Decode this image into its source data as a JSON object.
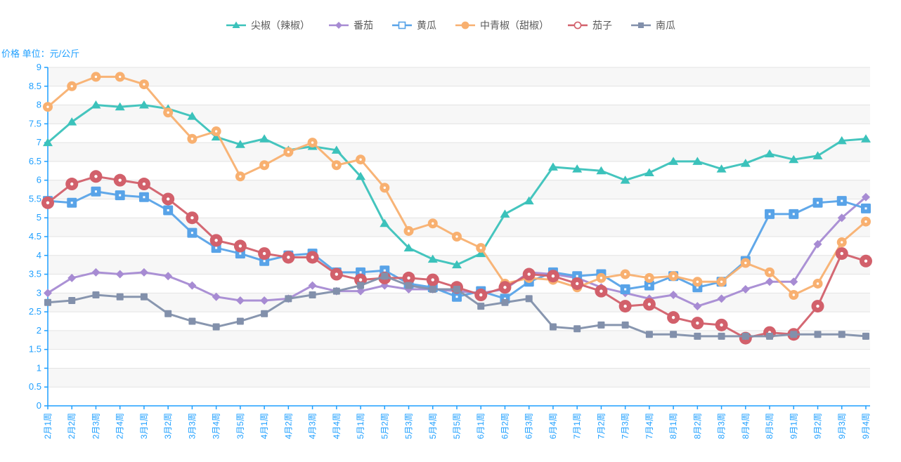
{
  "y_axis_title": "价格 单位：元/公斤",
  "chart_data": {
    "type": "line",
    "title": "",
    "ylabel": "价格 单位：元/公斤",
    "xlabel": "",
    "ylim": [
      0,
      9
    ],
    "y_interval": 0.5,
    "grid": true,
    "legend_position": "top",
    "axis_color": "#1e9fff",
    "gridline_color": "#e3e3e3",
    "band_color": "#f7f7f7",
    "x_labels": [
      "2月1周",
      "2月2周",
      "2月3周",
      "2月4周",
      "3月1周",
      "3月2周",
      "3月3周",
      "3月4周",
      "3月5周",
      "4月1周",
      "4月2周",
      "4月3周",
      "4月4周",
      "5月1周",
      "5月2周",
      "5月3周",
      "5月4周",
      "5月5周",
      "6月1周",
      "6月2周",
      "6月3周",
      "6月4周",
      "7月1周",
      "7月2周",
      "7月3周",
      "7月4周",
      "8月1周",
      "8月2周",
      "8月3周",
      "8月4周",
      "8月5周",
      "9月1周",
      "9月2周",
      "9月3周",
      "9月4周"
    ],
    "series": [
      {
        "name": "尖椒（辣椒）",
        "color": "#3bc2bb",
        "marker": "triangle",
        "hollow_in_legend": false,
        "values": [
          7.0,
          7.55,
          8.0,
          7.95,
          8.0,
          7.9,
          7.7,
          7.15,
          6.95,
          7.1,
          6.8,
          6.9,
          6.8,
          6.1,
          4.85,
          4.2,
          3.9,
          3.75,
          4.05,
          5.1,
          5.45,
          6.35,
          6.3,
          6.25,
          6.0,
          6.2,
          6.5,
          6.5,
          6.3,
          6.45,
          6.7,
          6.55,
          6.65,
          7.05,
          7.1
        ]
      },
      {
        "name": "番茄",
        "color": "#a78bd3",
        "marker": "diamond",
        "hollow_in_legend": false,
        "values": [
          3.0,
          3.4,
          3.55,
          3.5,
          3.55,
          3.45,
          3.2,
          2.9,
          2.8,
          2.8,
          2.85,
          3.2,
          3.05,
          3.05,
          3.2,
          3.1,
          3.1,
          3.05,
          3.0,
          3.1,
          3.55,
          3.5,
          3.4,
          3.15,
          3.0,
          2.85,
          2.95,
          2.65,
          2.85,
          3.1,
          3.3,
          3.3,
          4.3,
          5.0,
          5.55
        ]
      },
      {
        "name": "黄瓜",
        "color": "#58a3e8",
        "marker": "square",
        "hollow_in_legend": true,
        "values": [
          5.45,
          5.4,
          5.7,
          5.6,
          5.55,
          5.2,
          4.6,
          4.2,
          4.05,
          3.85,
          4.0,
          4.05,
          3.55,
          3.55,
          3.6,
          3.25,
          3.15,
          2.9,
          3.05,
          2.85,
          3.3,
          3.55,
          3.45,
          3.5,
          3.1,
          3.2,
          3.45,
          3.15,
          3.3,
          3.85,
          5.1,
          5.1,
          5.4,
          5.45,
          5.25
        ]
      },
      {
        "name": "中青椒（甜椒）",
        "color": "#f8b070",
        "marker": "circle",
        "hollow_in_legend": false,
        "values": [
          7.95,
          8.5,
          8.75,
          8.75,
          8.55,
          7.8,
          7.1,
          7.3,
          6.1,
          6.4,
          6.75,
          7.0,
          6.4,
          6.55,
          5.8,
          4.65,
          4.85,
          4.5,
          4.2,
          3.25,
          3.4,
          3.35,
          3.15,
          3.4,
          3.5,
          3.4,
          3.45,
          3.3,
          3.3,
          3.8,
          3.55,
          2.95,
          3.25,
          4.35,
          4.9
        ]
      },
      {
        "name": "茄子",
        "color": "#d2606b",
        "marker": "circle-big",
        "hollow_in_legend": true,
        "values": [
          5.4,
          5.9,
          6.1,
          6.0,
          5.9,
          5.5,
          5.0,
          4.4,
          4.25,
          4.05,
          3.95,
          3.95,
          3.5,
          3.35,
          3.4,
          3.4,
          3.35,
          3.15,
          2.95,
          3.15,
          3.5,
          3.45,
          3.25,
          3.05,
          2.65,
          2.7,
          2.35,
          2.2,
          2.15,
          1.8,
          1.95,
          1.9,
          2.65,
          4.05,
          3.85
        ]
      },
      {
        "name": "南瓜",
        "color": "#8290ab",
        "marker": "square-small",
        "hollow_in_legend": false,
        "values": [
          2.75,
          2.8,
          2.95,
          2.9,
          2.9,
          2.45,
          2.25,
          2.1,
          2.25,
          2.45,
          2.85,
          2.95,
          3.05,
          3.2,
          3.45,
          3.2,
          3.1,
          3.1,
          2.65,
          2.75,
          2.85,
          2.1,
          2.05,
          2.15,
          2.15,
          1.9,
          1.9,
          1.85,
          1.85,
          1.85,
          1.85,
          1.9,
          1.9,
          1.9,
          1.85
        ]
      }
    ]
  }
}
